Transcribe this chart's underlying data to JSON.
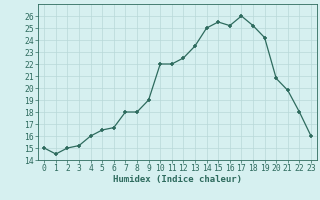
{
  "x": [
    0,
    1,
    2,
    3,
    4,
    5,
    6,
    7,
    8,
    9,
    10,
    11,
    12,
    13,
    14,
    15,
    16,
    17,
    18,
    19,
    20,
    21,
    22,
    23
  ],
  "y": [
    15.0,
    14.5,
    15.0,
    15.2,
    16.0,
    16.5,
    16.7,
    18.0,
    18.0,
    19.0,
    22.0,
    22.0,
    22.5,
    23.5,
    25.0,
    25.5,
    25.2,
    26.0,
    25.2,
    24.2,
    20.8,
    19.8,
    18.0,
    16.0
  ],
  "xlabel": "Humidex (Indice chaleur)",
  "xlim": [
    -0.5,
    23.5
  ],
  "ylim": [
    14,
    27
  ],
  "yticks": [
    14,
    15,
    16,
    17,
    18,
    19,
    20,
    21,
    22,
    23,
    24,
    25,
    26
  ],
  "xticks": [
    0,
    1,
    2,
    3,
    4,
    5,
    6,
    7,
    8,
    9,
    10,
    11,
    12,
    13,
    14,
    15,
    16,
    17,
    18,
    19,
    20,
    21,
    22,
    23
  ],
  "line_color": "#2e6b5e",
  "marker": "+",
  "bg_color": "#d6f0f0",
  "grid_color": "#b8d8d8",
  "label_fontsize": 6.5,
  "tick_fontsize": 5.8
}
